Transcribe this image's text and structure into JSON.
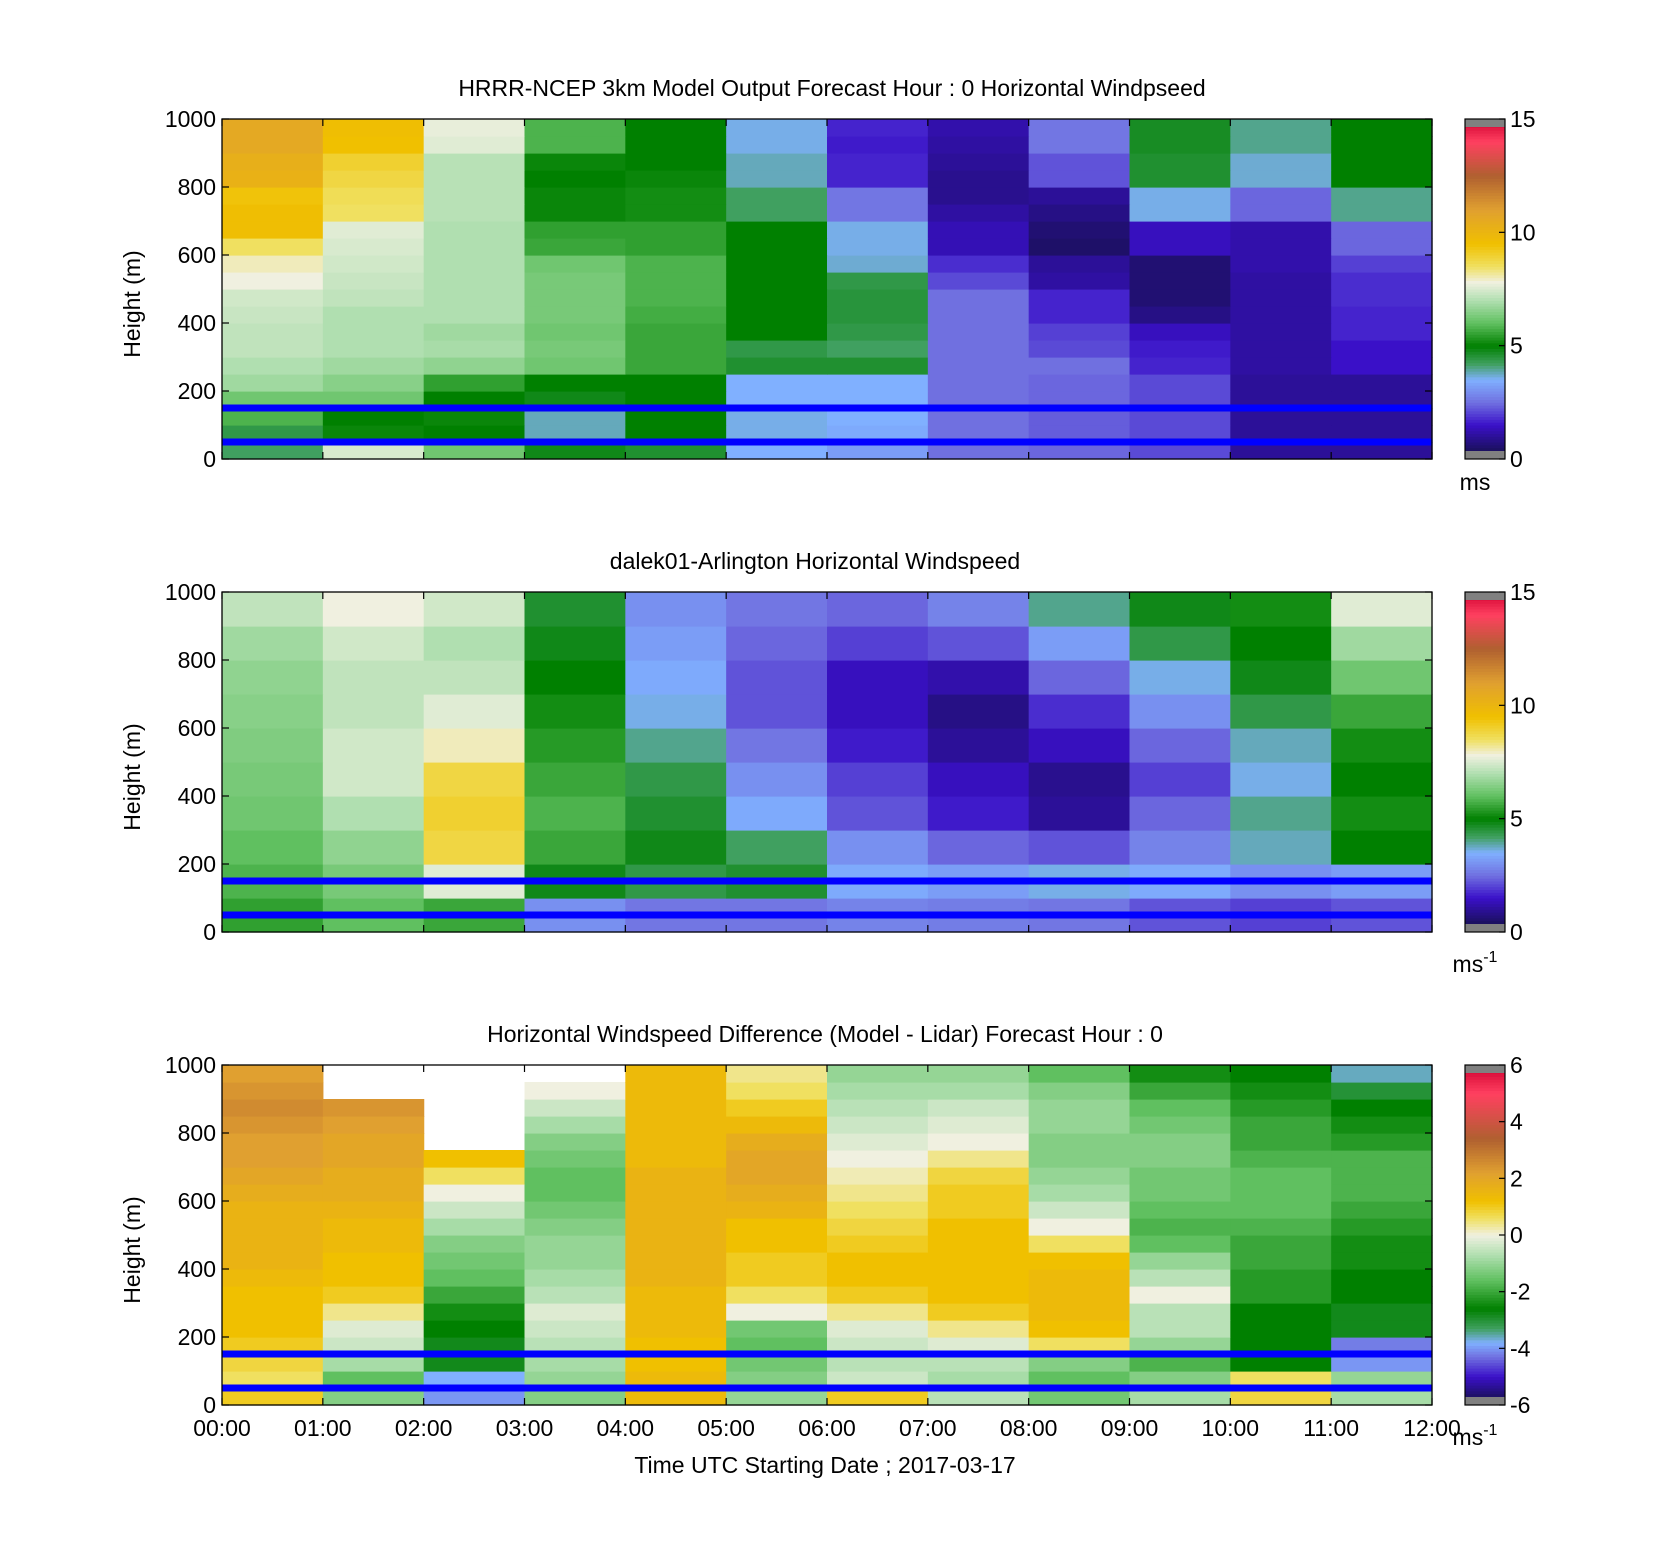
{
  "figure": {
    "xlabel": "Time UTC  Starting Date ; 2017-03-17",
    "x_ticks": [
      "00:00",
      "01:00",
      "02:00",
      "03:00",
      "04:00",
      "05:00",
      "06:00",
      "07:00",
      "08:00",
      "09:00",
      "10:00",
      "11:00",
      "12:00"
    ],
    "y_ticks": [
      "0",
      "200",
      "400",
      "600",
      "800",
      "1000"
    ],
    "marker_color": "#0000ff"
  },
  "chart_data": [
    {
      "type": "heatmap",
      "title": "HRRR-NCEP 3km Model Output   Forecast Hour : 0 Horizontal Windpseed",
      "ylabel": "Height (m)",
      "xlim": [
        "00:00",
        "12:00"
      ],
      "ylim": [
        0,
        1000
      ],
      "colorbar": {
        "ticks": [
          "0",
          "5",
          "10",
          "15"
        ],
        "range": [
          0,
          15
        ],
        "unit_base": "ms",
        "unit_exp": ""
      },
      "colormap": [
        [
          0,
          "#101038"
        ],
        [
          1.5,
          "#3a10c8"
        ],
        [
          2.5,
          "#7070e0"
        ],
        [
          3.5,
          "#80b0ff"
        ],
        [
          4.2,
          "#40a060"
        ],
        [
          5,
          "#008000"
        ],
        [
          6,
          "#60c060"
        ],
        [
          7,
          "#b0dfb0"
        ],
        [
          7.8,
          "#f0f0e0"
        ],
        [
          8.5,
          "#f0e060"
        ],
        [
          9.5,
          "#f0c000"
        ],
        [
          11,
          "#e0a030"
        ],
        [
          12.5,
          "#b06030"
        ],
        [
          14,
          "#ff4060"
        ],
        [
          15,
          "#d00030"
        ]
      ],
      "markers_m": [
        150,
        50
      ],
      "x": [
        "00:00",
        "01:00",
        "02:00",
        "03:00",
        "04:00",
        "05:00",
        "06:00",
        "07:00",
        "08:00",
        "09:00",
        "10:00",
        "11:00"
      ],
      "heights_m": [
        25,
        75,
        125,
        175,
        225,
        275,
        325,
        375,
        425,
        475,
        525,
        575,
        625,
        675,
        725,
        775,
        825,
        875,
        925,
        975
      ],
      "values": [
        [
          4.2,
          7.5,
          6.2,
          4.8,
          4.6,
          3.5,
          3.2,
          2.5,
          2.4,
          2.1,
          1.0,
          1.0
        ],
        [
          4.4,
          5.1,
          5.0,
          3.8,
          5.0,
          3.6,
          3.4,
          2.5,
          2.3,
          2.1,
          1.0,
          1.0
        ],
        [
          5.8,
          5.0,
          5.1,
          3.8,
          5.0,
          3.6,
          3.5,
          2.5,
          2.3,
          2.1,
          1.0,
          1.0
        ],
        [
          6.2,
          6.2,
          5.0,
          4.8,
          5.0,
          3.5,
          3.5,
          2.5,
          2.4,
          2.1,
          1.0,
          1.0
        ],
        [
          6.8,
          6.5,
          5.5,
          5.0,
          5.0,
          3.5,
          3.5,
          2.5,
          2.4,
          2.1,
          1.0,
          1.0
        ],
        [
          7.0,
          6.8,
          6.6,
          6.2,
          5.6,
          4.6,
          4.6,
          2.5,
          2.5,
          1.7,
          1.1,
          1.5
        ],
        [
          7.2,
          7.0,
          6.9,
          6.3,
          5.6,
          4.4,
          4.2,
          2.5,
          2.1,
          1.6,
          1.1,
          1.5
        ],
        [
          7.2,
          7.0,
          6.8,
          6.2,
          5.6,
          5.0,
          4.4,
          2.5,
          2.0,
          1.4,
          1.1,
          1.7
        ],
        [
          7.3,
          7.0,
          7.0,
          6.3,
          5.7,
          5.0,
          4.5,
          2.5,
          1.7,
          0.8,
          1.1,
          1.7
        ],
        [
          7.4,
          7.2,
          7.0,
          6.3,
          5.8,
          5.0,
          4.5,
          2.5,
          1.7,
          0.6,
          1.1,
          1.8
        ],
        [
          7.8,
          7.3,
          7.0,
          6.3,
          5.8,
          5.0,
          4.4,
          2.1,
          1.1,
          0.6,
          1.1,
          1.8
        ],
        [
          8.0,
          7.4,
          7.0,
          6.2,
          5.8,
          5.0,
          3.7,
          1.8,
          1.0,
          0.6,
          1.2,
          2.0
        ],
        [
          8.5,
          7.5,
          7.0,
          5.6,
          5.5,
          5.0,
          3.6,
          1.3,
          0.5,
          1.4,
          1.2,
          2.4
        ],
        [
          9.6,
          7.6,
          7.0,
          5.5,
          5.5,
          5.0,
          3.6,
          1.3,
          0.6,
          1.4,
          1.2,
          2.4
        ],
        [
          9.6,
          8.5,
          7.1,
          5.1,
          5.2,
          4.2,
          2.6,
          1.1,
          0.8,
          3.6,
          2.4,
          4.0
        ],
        [
          9.4,
          8.6,
          7.1,
          5.1,
          5.2,
          4.2,
          2.6,
          0.9,
          1.0,
          3.6,
          2.4,
          4.0
        ],
        [
          10.2,
          8.8,
          7.1,
          5.0,
          5.1,
          3.8,
          1.7,
          0.9,
          2.2,
          4.6,
          3.7,
          5.0
        ],
        [
          10.3,
          9.0,
          7.1,
          5.1,
          5.0,
          3.8,
          1.7,
          1.0,
          2.2,
          4.6,
          3.7,
          5.0
        ],
        [
          10.6,
          9.5,
          7.6,
          5.8,
          5.0,
          3.6,
          1.6,
          1.1,
          2.6,
          4.7,
          4.0,
          5.0
        ],
        [
          10.6,
          9.6,
          7.7,
          5.8,
          5.0,
          3.6,
          1.7,
          1.2,
          2.6,
          4.7,
          4.0,
          5.0
        ]
      ]
    },
    {
      "type": "heatmap",
      "title": "dalek01-Arlington  Horizontal Windspeed",
      "ylabel": "Height (m)",
      "xlim": [
        "00:00",
        "12:00"
      ],
      "ylim": [
        0,
        1000
      ],
      "colorbar": {
        "ticks": [
          "0",
          "5",
          "10",
          "15"
        ],
        "range": [
          0,
          15
        ],
        "unit_base": "ms",
        "unit_exp": "-1"
      },
      "colormap": [
        [
          0,
          "#101038"
        ],
        [
          1.5,
          "#3a10c8"
        ],
        [
          2.5,
          "#7070e0"
        ],
        [
          3.5,
          "#80b0ff"
        ],
        [
          4.2,
          "#40a060"
        ],
        [
          5,
          "#008000"
        ],
        [
          6,
          "#60c060"
        ],
        [
          7,
          "#b0dfb0"
        ],
        [
          7.8,
          "#f0f0e0"
        ],
        [
          8.5,
          "#f0e060"
        ],
        [
          9.5,
          "#f0c000"
        ],
        [
          11,
          "#e0a030"
        ],
        [
          12.5,
          "#b06030"
        ],
        [
          14,
          "#ff4060"
        ],
        [
          15,
          "#d00030"
        ]
      ],
      "markers_m": [
        150,
        50
      ],
      "x": [
        "00:00",
        "01:00",
        "02:00",
        "03:00",
        "04:00",
        "05:00",
        "06:00",
        "07:00",
        "08:00",
        "09:00",
        "10:00",
        "11:00"
      ],
      "heights_m": [
        50,
        150,
        250,
        350,
        450,
        550,
        650,
        750,
        850,
        950
      ],
      "values": [
        [
          5.5,
          6.0,
          5.6,
          3.0,
          2.6,
          2.6,
          2.8,
          2.7,
          2.6,
          2.2,
          2.0,
          2.2
        ],
        [
          5.8,
          6.3,
          7.6,
          4.8,
          4.4,
          4.6,
          3.4,
          3.2,
          3.6,
          3.4,
          3.0,
          3.2
        ],
        [
          6.0,
          6.6,
          8.8,
          5.6,
          4.8,
          4.2,
          3.0,
          2.4,
          2.2,
          2.8,
          3.8,
          5.0
        ],
        [
          6.2,
          7.0,
          9.0,
          5.8,
          4.6,
          3.4,
          2.2,
          1.6,
          1.0,
          2.4,
          4.0,
          5.2
        ],
        [
          6.3,
          7.4,
          8.8,
          5.6,
          4.4,
          3.0,
          2.0,
          1.4,
          0.9,
          2.0,
          3.6,
          5.0
        ],
        [
          6.4,
          7.4,
          8.0,
          5.4,
          4.0,
          2.6,
          1.6,
          1.0,
          1.4,
          2.4,
          3.8,
          5.2
        ],
        [
          6.5,
          7.2,
          7.6,
          5.2,
          3.6,
          2.2,
          1.4,
          0.8,
          1.8,
          3.0,
          4.4,
          5.6
        ],
        [
          6.6,
          7.2,
          7.2,
          5.0,
          3.4,
          2.2,
          1.4,
          1.2,
          2.4,
          3.6,
          4.8,
          6.2
        ],
        [
          6.8,
          7.4,
          7.0,
          4.8,
          3.2,
          2.4,
          2.0,
          2.2,
          3.2,
          4.4,
          5.0,
          6.8
        ],
        [
          7.2,
          7.8,
          7.4,
          4.6,
          3.0,
          2.6,
          2.4,
          2.8,
          4.0,
          4.8,
          5.2,
          7.6
        ]
      ]
    },
    {
      "type": "heatmap",
      "title": "Horizontal Windspeed Difference (Model - Lidar) Forecast Hour : 0",
      "ylabel": "Height (m)",
      "xlabel": "Time UTC  Starting Date ; 2017-03-17",
      "xlim": [
        "00:00",
        "12:00"
      ],
      "ylim": [
        0,
        1000
      ],
      "colorbar": {
        "ticks": [
          "-6",
          "-4",
          "-2",
          "0",
          "2",
          "4",
          "6"
        ],
        "range": [
          -6,
          6
        ],
        "unit_base": "ms",
        "unit_exp": "-1"
      },
      "colormap": [
        [
          -6,
          "#101038"
        ],
        [
          -5,
          "#3a10c8"
        ],
        [
          -4.3,
          "#7070e0"
        ],
        [
          -3.8,
          "#80b0ff"
        ],
        [
          -3.3,
          "#40a060"
        ],
        [
          -2.6,
          "#008000"
        ],
        [
          -1.6,
          "#60c060"
        ],
        [
          -0.7,
          "#b0dfb0"
        ],
        [
          0,
          "#f0f0e0"
        ],
        [
          0.6,
          "#f0e060"
        ],
        [
          1.2,
          "#f0c000"
        ],
        [
          2.2,
          "#e0a030"
        ],
        [
          3.4,
          "#b06030"
        ],
        [
          5,
          "#ff4060"
        ],
        [
          6,
          "#d00030"
        ]
      ],
      "markers_m": [
        150,
        50
      ],
      "x": [
        "00:00",
        "01:00",
        "02:00",
        "03:00",
        "04:00",
        "05:00",
        "06:00",
        "07:00",
        "08:00",
        "09:00",
        "10:00",
        "11:00"
      ],
      "heights_m": [
        25,
        75,
        125,
        175,
        225,
        275,
        325,
        375,
        425,
        475,
        525,
        575,
        625,
        675,
        725,
        775,
        825,
        875,
        925,
        975
      ],
      "values": [
        [
          1.0,
          -1.2,
          -4.0,
          -1.2,
          1.4,
          -1.0,
          1.0,
          -0.6,
          -1.4,
          -0.8,
          0.8,
          -0.8
        ],
        [
          0.6,
          -1.6,
          -3.8,
          -1.0,
          1.4,
          -1.2,
          -0.4,
          -0.8,
          -1.6,
          -1.2,
          0.6,
          -1.0
        ],
        [
          0.8,
          -0.8,
          -2.8,
          -0.8,
          1.2,
          -1.4,
          -0.6,
          -0.6,
          -1.2,
          -1.8,
          -2.6,
          -4.0
        ],
        [
          1.0,
          -0.4,
          -2.8,
          -0.6,
          1.2,
          -1.6,
          -0.4,
          -0.2,
          0.6,
          -1.0,
          -2.6,
          -4.2
        ],
        [
          1.2,
          -0.2,
          -2.6,
          -0.4,
          1.4,
          -1.4,
          -0.2,
          0.4,
          1.2,
          -0.6,
          -2.6,
          -2.8
        ],
        [
          1.2,
          0.4,
          -2.4,
          -0.2,
          1.4,
          0.0,
          0.4,
          1.0,
          1.4,
          -0.6,
          -2.6,
          -2.8
        ],
        [
          1.2,
          1.0,
          -2.0,
          -0.6,
          1.4,
          0.6,
          1.0,
          1.2,
          1.4,
          0.0,
          -2.2,
          -2.6
        ],
        [
          1.4,
          1.2,
          -1.6,
          -0.8,
          1.6,
          1.0,
          1.2,
          1.2,
          1.4,
          -0.6,
          -2.2,
          -2.6
        ],
        [
          1.6,
          1.2,
          -1.4,
          -1.0,
          1.6,
          1.0,
          1.2,
          1.2,
          1.2,
          -1.0,
          -2.0,
          -2.4
        ],
        [
          1.6,
          1.4,
          -1.2,
          -1.0,
          1.6,
          1.2,
          1.0,
          1.2,
          0.6,
          -1.6,
          -2.0,
          -2.4
        ],
        [
          1.6,
          1.4,
          -0.8,
          -1.2,
          1.6,
          1.2,
          0.8,
          1.2,
          0.0,
          -1.8,
          -1.8,
          -2.2
        ],
        [
          1.6,
          1.6,
          -0.4,
          -1.4,
          1.6,
          1.6,
          0.6,
          1.0,
          -0.4,
          -1.6,
          -1.6,
          -2.0
        ],
        [
          1.8,
          1.8,
          0.0,
          -1.6,
          1.6,
          1.8,
          0.4,
          1.0,
          -0.8,
          -1.4,
          -1.6,
          -1.8
        ],
        [
          2.0,
          1.8,
          0.6,
          -1.6,
          1.6,
          2.0,
          0.2,
          0.8,
          -1.0,
          -1.4,
          -1.6,
          -1.8
        ],
        [
          2.2,
          2.0,
          1.2,
          -1.4,
          1.4,
          2.0,
          0.0,
          0.4,
          -1.2,
          -1.2,
          -1.8,
          -1.8
        ],
        [
          2.2,
          2.0,
          null,
          -1.2,
          1.4,
          1.8,
          -0.2,
          0.0,
          -1.2,
          -1.2,
          -2.0,
          -2.2
        ],
        [
          2.4,
          2.2,
          null,
          -0.8,
          1.4,
          1.4,
          -0.4,
          -0.2,
          -1.0,
          -1.4,
          -2.0,
          -2.4
        ],
        [
          2.6,
          2.4,
          null,
          -0.4,
          1.4,
          1.0,
          -0.6,
          -0.4,
          -1.0,
          -1.6,
          -2.2,
          -2.6
        ],
        [
          2.4,
          null,
          null,
          0.0,
          1.4,
          0.6,
          -0.8,
          -0.8,
          -1.2,
          -2.0,
          -2.4,
          -3.0
        ],
        [
          2.2,
          null,
          null,
          null,
          1.4,
          0.4,
          -1.0,
          -1.0,
          -1.6,
          -2.4,
          -2.6,
          -3.6
        ]
      ]
    }
  ]
}
